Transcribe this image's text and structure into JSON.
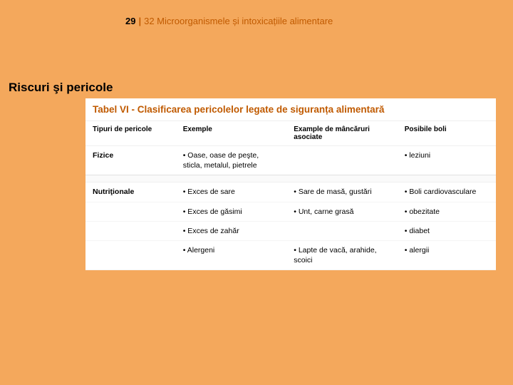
{
  "header": {
    "page_number": "29",
    "separator": "|",
    "chapter": "32 Microorganismele și intoxicațiile alimentare"
  },
  "side_heading": "Riscuri şi pericole",
  "table": {
    "title": "Tabel VI - Clasificarea pericolelor legate de siguranța alimentară",
    "columns": {
      "c1": "Tipuri de pericole",
      "c2": "Exemple",
      "c3": "Example de mâncăruri asociate",
      "c4": "Posibile boli"
    },
    "rows": [
      {
        "type": "Fizice",
        "ex": "• Oase, oase de peşte, sticla, metalul, pietrele",
        "food": "",
        "disease": "• leziuni",
        "cat_end": true
      },
      {
        "type": "Nutriţionale",
        "ex": "• Exces de sare",
        "food": "• Sare de masă, gustări",
        "disease": "• Boli cardiovasculare"
      },
      {
        "type": "",
        "ex": "• Exces de găsimi",
        "food": "• Unt, carne grasă",
        "disease": "• obezitate"
      },
      {
        "type": "",
        "ex": "• Exces de zahăr",
        "food": "",
        "disease": "• diabet"
      },
      {
        "type": "",
        "ex": "• Alergeni",
        "food": "• Lapte de vacă, arahide, scoici",
        "disease": "• alergii"
      }
    ]
  },
  "colors": {
    "page_bg": "#f4a85c",
    "accent": "#c05a00",
    "white": "#ffffff"
  }
}
